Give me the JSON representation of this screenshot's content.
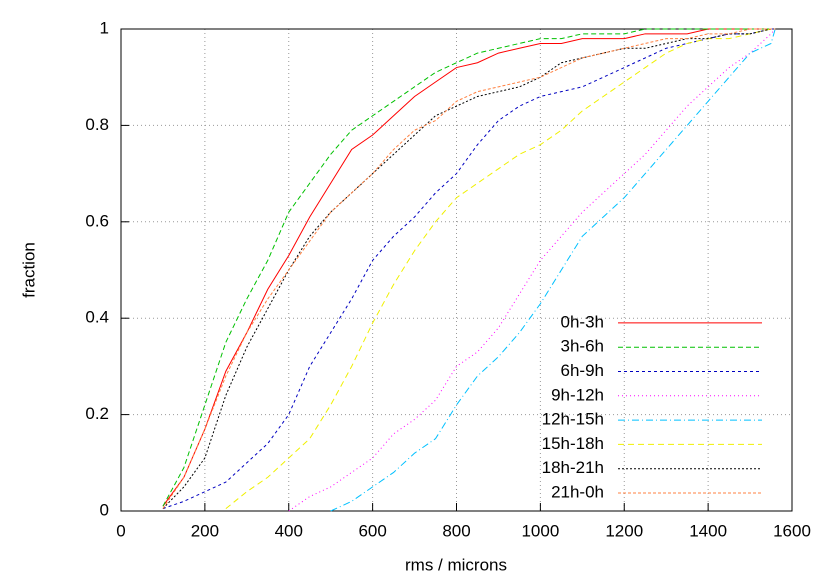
{
  "chart_data": {
    "type": "line",
    "x_label": "rms / microns",
    "y_label": "fraction",
    "x": [
      50,
      100,
      150,
      200,
      250,
      300,
      350,
      400,
      450,
      500,
      550,
      600,
      650,
      700,
      750,
      800,
      850,
      900,
      950,
      1000,
      1050,
      1100,
      1150,
      1200,
      1250,
      1300,
      1350,
      1400,
      1450,
      1500,
      1550,
      1560
    ],
    "xlim": [
      0,
      1600
    ],
    "xticks": [
      0,
      200,
      400,
      600,
      800,
      1000,
      1200,
      1400,
      1600
    ],
    "ylim": [
      0,
      1
    ],
    "yticks": [
      0,
      0.2,
      0.4,
      0.6,
      0.8,
      1
    ],
    "grid": true,
    "legend": "bottom-right",
    "series": [
      {
        "name": "0h-3h",
        "color": "#ff0000",
        "values": [
          null,
          0.01,
          0.07,
          0.17,
          0.29,
          0.37,
          0.46,
          0.53,
          0.61,
          0.68,
          0.75,
          0.78,
          0.82,
          0.86,
          0.89,
          0.92,
          0.93,
          0.95,
          0.96,
          0.97,
          0.97,
          0.98,
          0.98,
          0.98,
          0.99,
          0.99,
          0.99,
          1,
          1,
          1,
          1,
          1
        ]
      },
      {
        "name": "3h-6h",
        "color": "#00c000",
        "values": [
          null,
          0.01,
          0.09,
          0.22,
          0.35,
          0.44,
          0.52,
          0.62,
          0.68,
          0.74,
          0.79,
          0.82,
          0.85,
          0.88,
          0.91,
          0.93,
          0.95,
          0.96,
          0.97,
          0.98,
          0.98,
          0.99,
          0.99,
          0.99,
          1,
          1,
          1,
          1,
          1,
          1,
          1,
          1
        ]
      },
      {
        "name": "6h-9h",
        "color": "#0000c0",
        "values": [
          null,
          0.005,
          0.02,
          0.04,
          0.06,
          0.1,
          0.14,
          0.2,
          0.3,
          0.37,
          0.44,
          0.52,
          0.57,
          0.61,
          0.66,
          0.7,
          0.76,
          0.81,
          0.84,
          0.86,
          0.87,
          0.88,
          0.9,
          0.92,
          0.94,
          0.96,
          0.97,
          0.98,
          0.99,
          0.99,
          1,
          1
        ]
      },
      {
        "name": "9h-12h",
        "color": "#ff00ff",
        "values": [
          null,
          null,
          null,
          null,
          null,
          null,
          null,
          0,
          0.03,
          0.05,
          0.08,
          0.11,
          0.16,
          0.19,
          0.23,
          0.3,
          0.33,
          0.38,
          0.45,
          0.52,
          0.57,
          0.62,
          0.66,
          0.7,
          0.74,
          0.79,
          0.84,
          0.88,
          0.92,
          0.95,
          0.99,
          1
        ]
      },
      {
        "name": "12h-15h",
        "color": "#00c0ff",
        "values": [
          null,
          null,
          null,
          null,
          null,
          null,
          null,
          null,
          null,
          0,
          0.02,
          0.05,
          0.08,
          0.12,
          0.15,
          0.22,
          0.28,
          0.32,
          0.37,
          0.43,
          0.5,
          0.57,
          0.61,
          0.65,
          0.7,
          0.75,
          0.8,
          0.85,
          0.9,
          0.95,
          0.97,
          1
        ]
      },
      {
        "name": "15h-18h",
        "color": "#f0f000",
        "values": [
          null,
          null,
          null,
          null,
          0.005,
          0.04,
          0.07,
          0.11,
          0.15,
          0.22,
          0.3,
          0.39,
          0.47,
          0.54,
          0.6,
          0.65,
          0.68,
          0.71,
          0.74,
          0.76,
          0.79,
          0.83,
          0.86,
          0.89,
          0.92,
          0.95,
          0.97,
          0.98,
          0.98,
          0.99,
          1,
          1
        ]
      },
      {
        "name": "18h-21h",
        "color": "#000000",
        "values": [
          null,
          0.005,
          0.05,
          0.11,
          0.24,
          0.34,
          0.42,
          0.5,
          0.57,
          0.62,
          0.66,
          0.7,
          0.74,
          0.78,
          0.82,
          0.84,
          0.86,
          0.87,
          0.88,
          0.9,
          0.93,
          0.94,
          0.95,
          0.96,
          0.96,
          0.97,
          0.98,
          0.98,
          0.99,
          0.99,
          1,
          1
        ]
      },
      {
        "name": "21h-0h",
        "color": "#ff8040",
        "values": [
          null,
          0.005,
          0.07,
          0.17,
          0.28,
          0.37,
          0.44,
          0.5,
          0.56,
          0.62,
          0.66,
          0.7,
          0.75,
          0.79,
          0.81,
          0.85,
          0.87,
          0.88,
          0.89,
          0.9,
          0.92,
          0.94,
          0.95,
          0.96,
          0.97,
          0.98,
          0.98,
          0.99,
          0.99,
          1,
          1,
          1
        ]
      }
    ]
  }
}
